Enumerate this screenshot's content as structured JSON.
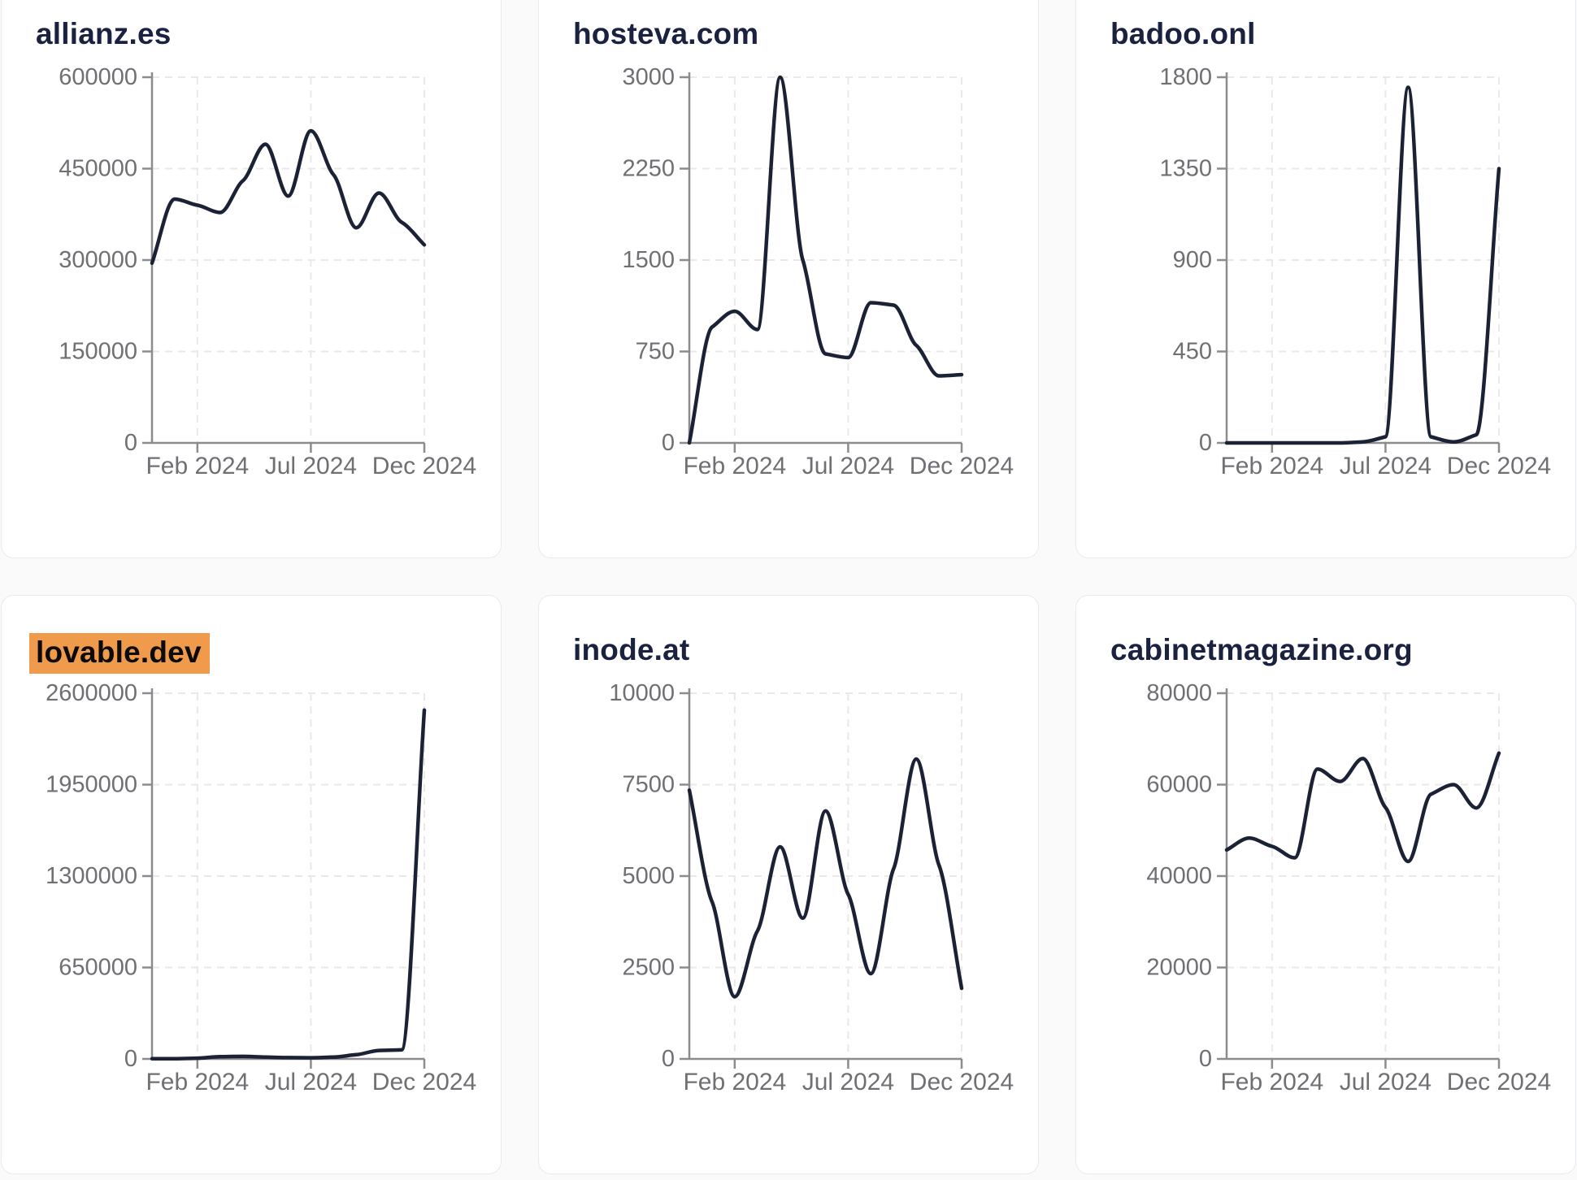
{
  "theme": {
    "page_background": "#fafafa",
    "card_background": "#ffffff",
    "card_border": "#e7eaf1",
    "title_color": "#1a2240",
    "highlight_color": "#f09a4c",
    "line_color": "#1b2235",
    "axis_color": "#8c8c90",
    "grid_color": "#e9e9eb",
    "tick_label_color": "#6f6f74"
  },
  "chart_data": [
    {
      "type": "line",
      "title": "allianz.es",
      "title_highlighted": false,
      "ylim": [
        0,
        600000
      ],
      "y_ticks": [
        0,
        150000,
        300000,
        450000,
        600000
      ],
      "x_ticks": [
        {
          "label": "Feb 2024",
          "index": 2
        },
        {
          "label": "Jul 2024",
          "index": 7
        },
        {
          "label": "Dec 2024",
          "index": 12
        }
      ],
      "values": [
        295000,
        400000,
        390000,
        378000,
        430000,
        490000,
        405000,
        512000,
        440000,
        353000,
        410000,
        362000,
        325000
      ],
      "grid": true,
      "legend": false
    },
    {
      "type": "line",
      "title": "hosteva.com",
      "title_highlighted": false,
      "ylim": [
        0,
        3000
      ],
      "y_ticks": [
        0,
        750,
        1500,
        2250,
        3000
      ],
      "x_ticks": [
        {
          "label": "Feb 2024",
          "index": 2
        },
        {
          "label": "Jul 2024",
          "index": 7
        },
        {
          "label": "Dec 2024",
          "index": 12
        }
      ],
      "values": [
        0,
        950,
        1080,
        930,
        3000,
        1500,
        730,
        700,
        1150,
        1130,
        800,
        550,
        560
      ],
      "grid": true,
      "legend": false
    },
    {
      "type": "line",
      "title": "badoo.onl",
      "title_highlighted": false,
      "ylim": [
        0,
        1800
      ],
      "y_ticks": [
        0,
        450,
        900,
        1350,
        1800
      ],
      "x_ticks": [
        {
          "label": "Feb 2024",
          "index": 2
        },
        {
          "label": "Jul 2024",
          "index": 7
        },
        {
          "label": "Dec 2024",
          "index": 12
        }
      ],
      "values": [
        0,
        0,
        0,
        0,
        0,
        0,
        5,
        30,
        1750,
        30,
        5,
        40,
        1350
      ],
      "grid": true,
      "legend": false
    },
    {
      "type": "line",
      "title": "lovable.dev",
      "title_highlighted": true,
      "ylim": [
        0,
        2600000
      ],
      "y_ticks": [
        0,
        650000,
        1300000,
        1950000,
        2600000
      ],
      "x_ticks": [
        {
          "label": "Feb 2024",
          "index": 2
        },
        {
          "label": "Jul 2024",
          "index": 7
        },
        {
          "label": "Dec 2024",
          "index": 12
        }
      ],
      "values": [
        1000,
        2000,
        5000,
        16000,
        18000,
        13000,
        9000,
        8000,
        13000,
        30000,
        60000,
        64000,
        2480000
      ],
      "grid": true,
      "legend": false
    },
    {
      "type": "line",
      "title": "inode.at",
      "title_highlighted": false,
      "ylim": [
        0,
        10000
      ],
      "y_ticks": [
        0,
        2500,
        5000,
        7500,
        10000
      ],
      "x_ticks": [
        {
          "label": "Feb 2024",
          "index": 2
        },
        {
          "label": "Jul 2024",
          "index": 7
        },
        {
          "label": "Dec 2024",
          "index": 12
        }
      ],
      "values": [
        7350,
        4300,
        1700,
        3500,
        5800,
        3850,
        6780,
        4500,
        2330,
        5200,
        8200,
        5300,
        1930
      ],
      "grid": true,
      "legend": false
    },
    {
      "type": "line",
      "title": "cabinetmagazine.org",
      "title_highlighted": false,
      "ylim": [
        0,
        80000
      ],
      "y_ticks": [
        0,
        20000,
        40000,
        60000,
        80000
      ],
      "x_ticks": [
        {
          "label": "Feb 2024",
          "index": 2
        },
        {
          "label": "Jul 2024",
          "index": 7
        },
        {
          "label": "Dec 2024",
          "index": 12
        }
      ],
      "values": [
        45700,
        48300,
        46500,
        44000,
        63400,
        60700,
        65700,
        55000,
        43200,
        57900,
        60000,
        54900,
        66900
      ],
      "grid": true,
      "legend": false
    }
  ]
}
